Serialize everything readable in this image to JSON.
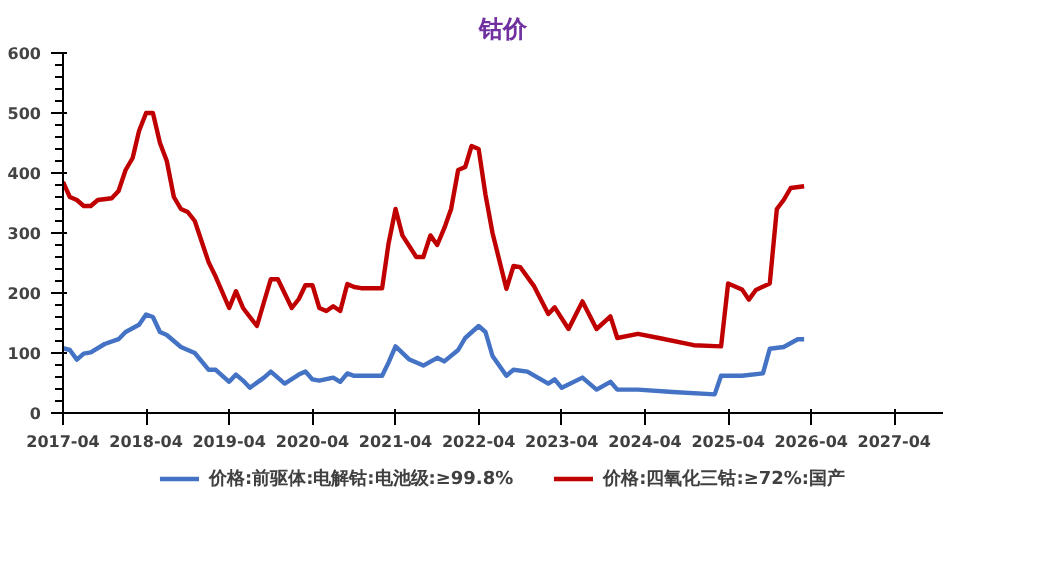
{
  "chart_data": {
    "type": "line",
    "title": "钴价",
    "xlim": [
      "2017-04",
      "2027-11"
    ],
    "xticks": [
      "2017-04",
      "2018-04",
      "2019-04",
      "2020-04",
      "2021-04",
      "2022-04",
      "2023-04",
      "2024-04",
      "2025-04",
      "2026-04",
      "2027-04"
    ],
    "ylim": [
      0,
      600
    ],
    "yticks": [
      0,
      100,
      200,
      300,
      400,
      500,
      600
    ],
    "grid": false,
    "legend": "bottom",
    "marker": "none",
    "line_style": "solid",
    "series": [
      {
        "name": "价格:前驱体:电解钴:电池级:≥99.8%",
        "color": "#4472c4",
        "x": [
          "2017-04",
          "2017-05",
          "2017-06",
          "2017-07",
          "2017-08",
          "2017-10",
          "2017-12",
          "2018-01",
          "2018-03",
          "2018-04",
          "2018-05",
          "2018-06",
          "2018-07",
          "2018-09",
          "2018-10",
          "2018-11",
          "2019-01",
          "2019-02",
          "2019-04",
          "2019-05",
          "2019-06",
          "2019-07",
          "2019-09",
          "2019-10",
          "2019-12",
          "2020-02",
          "2020-03",
          "2020-04",
          "2020-05",
          "2020-07",
          "2020-08",
          "2020-09",
          "2020-10",
          "2021-02",
          "2021-03",
          "2021-04",
          "2021-06",
          "2021-08",
          "2021-10",
          "2021-11",
          "2022-01",
          "2022-02",
          "2022-04",
          "2022-05",
          "2022-06",
          "2022-08",
          "2022-09",
          "2022-11",
          "2023-02",
          "2023-03",
          "2023-04",
          "2023-07",
          "2023-09",
          "2023-11",
          "2023-12",
          "2024-03",
          "2024-08",
          "2025-02",
          "2025-03",
          "2025-06",
          "2025-09",
          "2025-10",
          "2025-12",
          "2026-02",
          "2026-03"
        ],
        "values": [
          108,
          105,
          89,
          99,
          101,
          115,
          123,
          135,
          147,
          164,
          160,
          135,
          130,
          110,
          105,
          100,
          72,
          72,
          52,
          64,
          54,
          42,
          59,
          69,
          49,
          64,
          69,
          56,
          54,
          59,
          52,
          66,
          62,
          62,
          84,
          111,
          89,
          79,
          92,
          86,
          105,
          125,
          145,
          135,
          95,
          62,
          72,
          69,
          49,
          56,
          42,
          59,
          39,
          52,
          39,
          39,
          35,
          31,
          62,
          62,
          66,
          107,
          110,
          123,
          123
        ]
      },
      {
        "name": "价格:四氧化三钴:≥72%:国产",
        "color": "#c00000",
        "x": [
          "2017-04",
          "2017-05",
          "2017-06",
          "2017-07",
          "2017-08",
          "2017-09",
          "2017-11",
          "2017-12",
          "2018-01",
          "2018-02",
          "2018-03",
          "2018-04",
          "2018-05",
          "2018-06",
          "2018-07",
          "2018-08",
          "2018-09",
          "2018-10",
          "2018-11",
          "2019-01",
          "2019-02",
          "2019-04",
          "2019-05",
          "2019-06",
          "2019-07",
          "2019-08",
          "2019-09",
          "2019-10",
          "2019-11",
          "2020-01",
          "2020-02",
          "2020-03",
          "2020-04",
          "2020-05",
          "2020-06",
          "2020-07",
          "2020-08",
          "2020-09",
          "2020-10",
          "2020-11",
          "2021-02",
          "2021-03",
          "2021-04",
          "2021-05",
          "2021-07",
          "2021-08",
          "2021-09",
          "2021-10",
          "2021-11",
          "2021-12",
          "2022-01",
          "2022-02",
          "2022-03",
          "2022-04",
          "2022-05",
          "2022-06",
          "2022-08",
          "2022-09",
          "2022-10",
          "2022-12",
          "2023-02",
          "2023-03",
          "2023-05",
          "2023-07",
          "2023-09",
          "2023-11",
          "2023-12",
          "2024-03",
          "2024-06",
          "2024-11",
          "2025-03",
          "2025-04",
          "2025-06",
          "2025-07",
          "2025-08",
          "2025-10",
          "2025-11",
          "2025-12",
          "2026-01",
          "2026-03"
        ],
        "values": [
          385,
          360,
          355,
          345,
          345,
          355,
          358,
          370,
          405,
          425,
          470,
          500,
          500,
          450,
          420,
          360,
          340,
          335,
          320,
          251,
          227,
          175,
          203,
          175,
          160,
          145,
          185,
          223,
          223,
          175,
          190,
          213,
          213,
          175,
          170,
          178,
          170,
          215,
          210,
          208,
          208,
          282,
          340,
          296,
          260,
          260,
          296,
          280,
          308,
          340,
          405,
          410,
          445,
          440,
          364,
          300,
          207,
          245,
          243,
          211,
          165,
          176,
          140,
          186,
          140,
          161,
          125,
          132,
          125,
          113,
          111,
          216,
          206,
          189,
          205,
          216,
          340,
          355,
          375,
          378
        ]
      }
    ]
  }
}
